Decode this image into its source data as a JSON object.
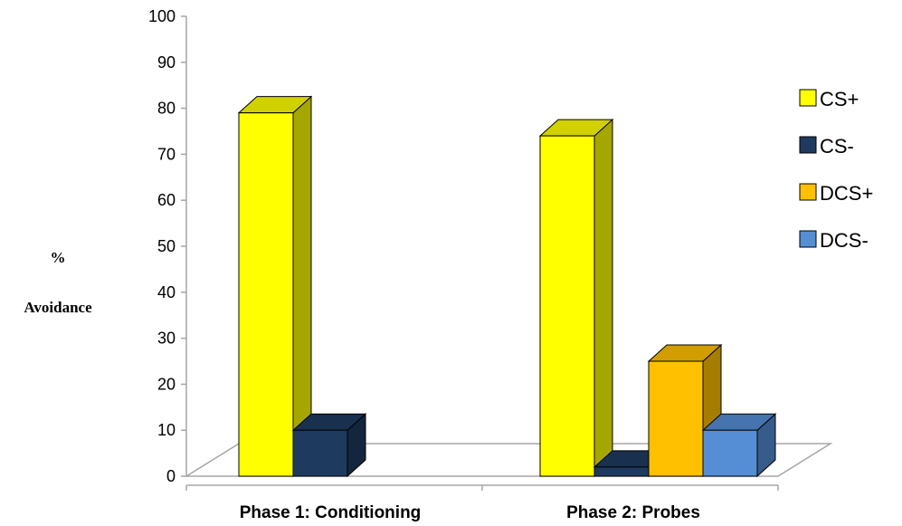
{
  "chart_data": {
    "type": "bar",
    "ylabel": [
      "%",
      "Avoidance"
    ],
    "ylim": [
      0,
      100
    ],
    "ytick_step": 10,
    "yticks": [
      "0",
      "10",
      "20",
      "30",
      "40",
      "50",
      "60",
      "70",
      "80",
      "90",
      "100"
    ],
    "categories": [
      "Phase 1: Conditioning",
      "Phase 2: Probes"
    ],
    "series": [
      {
        "name": "CS+",
        "color": "#FFFF00",
        "values": [
          79,
          74
        ]
      },
      {
        "name": "CS-",
        "color": "#1F3A5F",
        "values": [
          10,
          2
        ]
      },
      {
        "name": "DCS+",
        "color": "#FFC000",
        "values": [
          null,
          25
        ]
      },
      {
        "name": "DCS-",
        "color": "#558ED5",
        "values": [
          null,
          10
        ]
      }
    ],
    "grid": false,
    "legend_position": "right"
  }
}
